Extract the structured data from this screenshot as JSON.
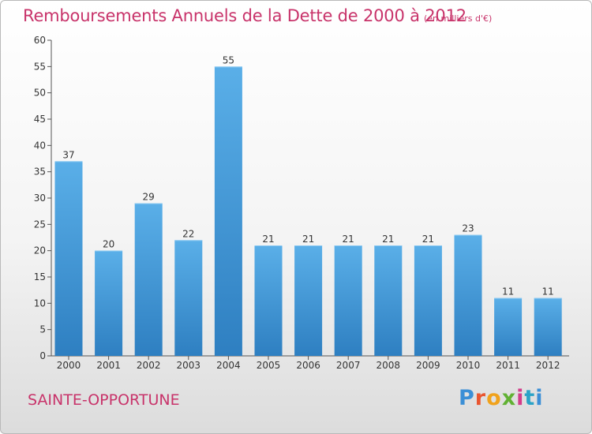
{
  "title": "Remboursements Annuels de la Dette de 2000 à 2012",
  "unit_label": "(en milliers d'€)",
  "commune": "SAINTE-OPPORTUNE",
  "logo_text": "Proxiti",
  "colors": {
    "accent": "#c8336a",
    "bar_top": "#5aafe8",
    "bar_bottom": "#2e7fc1"
  },
  "chart_data": {
    "type": "bar",
    "categories": [
      "2000",
      "2001",
      "2002",
      "2003",
      "2004",
      "2005",
      "2006",
      "2007",
      "2008",
      "2009",
      "2010",
      "2011",
      "2012"
    ],
    "values": [
      37,
      20,
      29,
      22,
      55,
      21,
      21,
      21,
      21,
      21,
      23,
      11,
      11
    ],
    "data_labels": [
      "37",
      "20",
      "29",
      "22",
      "55",
      "21",
      "21",
      "21",
      "21",
      "21",
      "23",
      "11",
      "11"
    ],
    "ylim": [
      0,
      60
    ],
    "yticks": [
      0,
      5,
      10,
      15,
      20,
      25,
      30,
      35,
      40,
      45,
      50,
      55,
      60
    ],
    "grid": false,
    "legend": "none"
  }
}
